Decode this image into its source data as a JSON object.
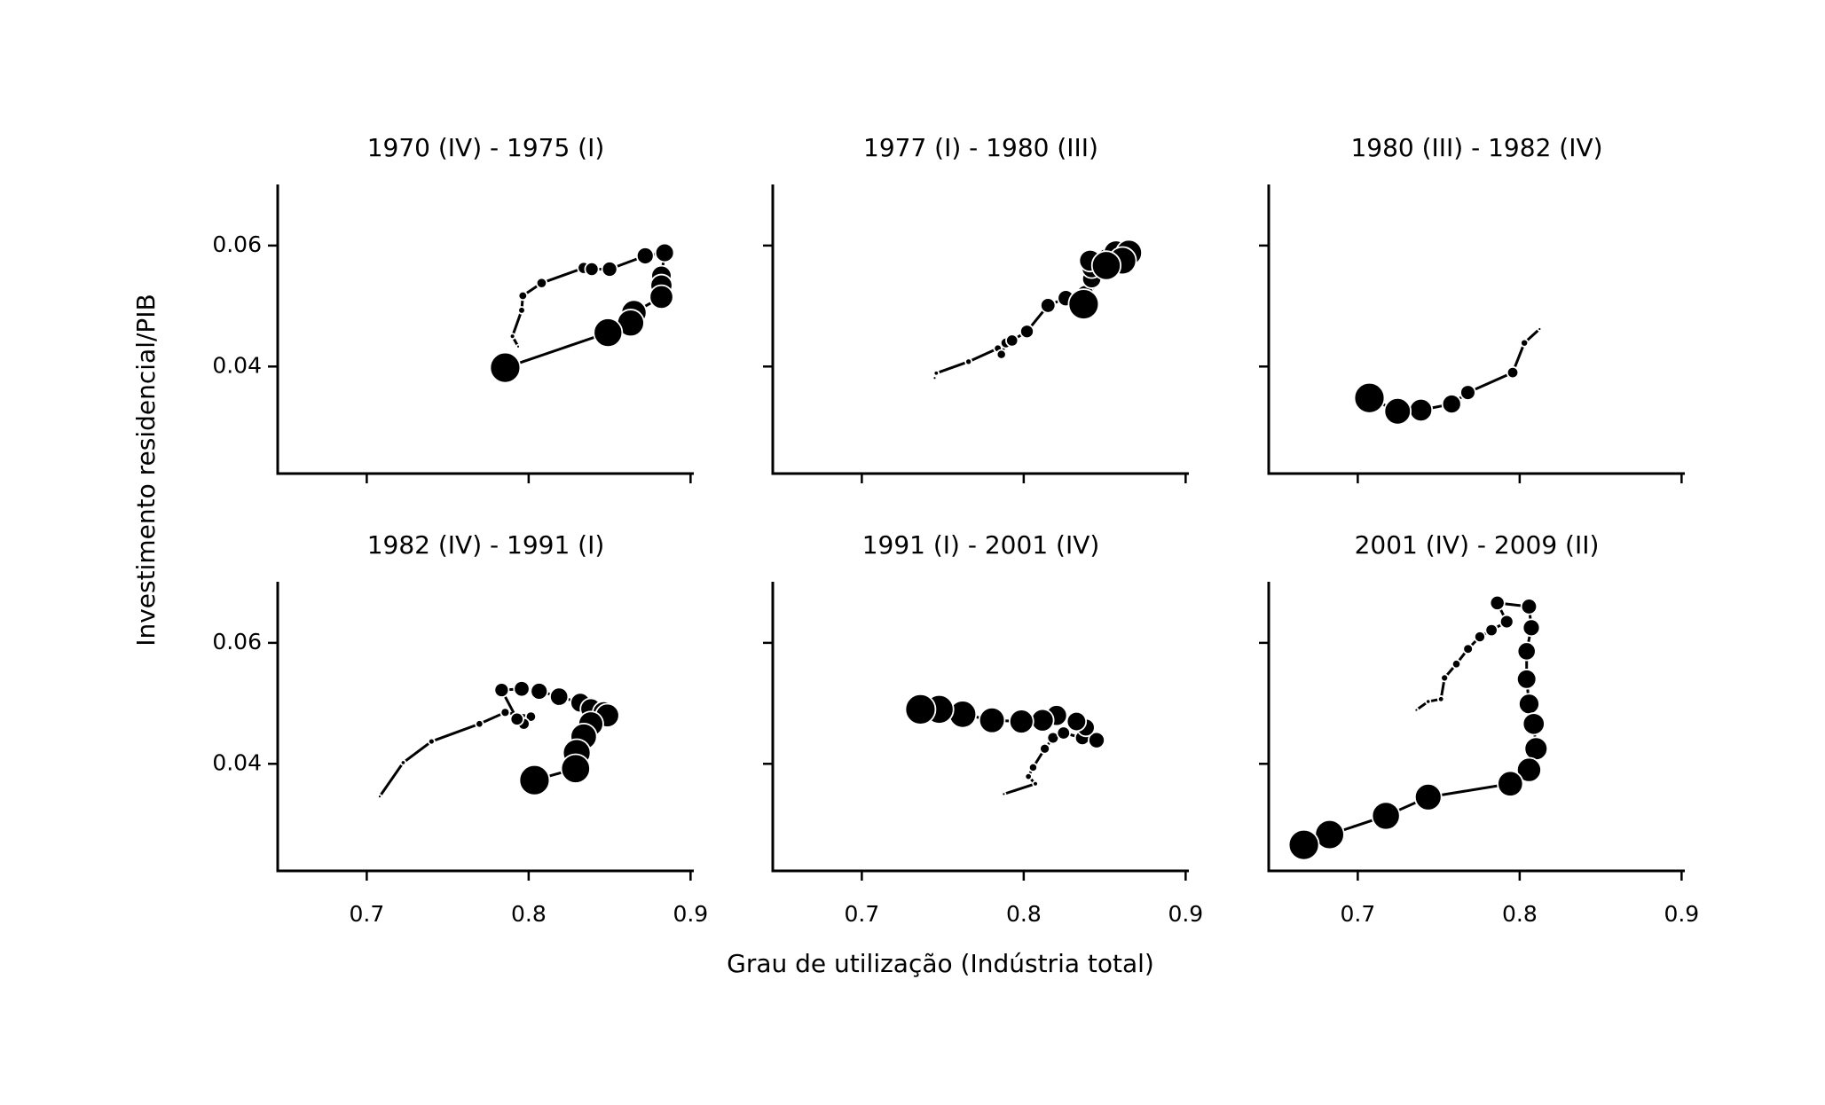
{
  "chart_data": [
    {
      "type": "scatter",
      "title": "1970 (IV) - 1975 (I)",
      "ylabel": "Investimento residencial/PIB",
      "color": "#000000",
      "x": [
        0.7935,
        0.79,
        0.7957,
        0.7964,
        0.808,
        0.834,
        0.839,
        0.85,
        0.872,
        0.884,
        0.882,
        0.882,
        0.882,
        0.865,
        0.863,
        0.849,
        0.7855
      ],
      "y": [
        0.0433,
        0.045,
        0.0493,
        0.0517,
        0.0538,
        0.0563,
        0.0561,
        0.0561,
        0.0583,
        0.0588,
        0.055,
        0.0534,
        0.0515,
        0.0489,
        0.0472,
        0.0456,
        0.0398
      ],
      "xlim": [
        0.645,
        0.902
      ],
      "ylim": [
        0.0223,
        0.0701
      ],
      "xticks": [
        0.7,
        0.8,
        0.9
      ],
      "yticks": [
        0.04,
        0.06
      ]
    },
    {
      "type": "scatter",
      "title": "1977 (I) - 1980 (III)",
      "color": "#000000",
      "x": [
        0.745,
        0.746,
        0.7659,
        0.784,
        0.7862,
        0.789,
        0.7928,
        0.802,
        0.815,
        0.826,
        0.838,
        0.842,
        0.842,
        0.841,
        0.852,
        0.857,
        0.865,
        0.861,
        0.851,
        0.837
      ],
      "y": [
        0.0381,
        0.0389,
        0.0408,
        0.043,
        0.042,
        0.0439,
        0.0443,
        0.0458,
        0.0501,
        0.0513,
        0.052,
        0.0545,
        0.0563,
        0.0575,
        0.0577,
        0.0588,
        0.0588,
        0.0575,
        0.0567,
        0.0503
      ],
      "xlim": [
        0.645,
        0.902
      ],
      "ylim": [
        0.0223,
        0.0701
      ],
      "xticks": [
        0.7,
        0.8,
        0.9
      ],
      "yticks": [
        0.04,
        0.06
      ]
    },
    {
      "type": "scatter",
      "title": "1980 (III) - 1982 (IV)",
      "color": "#000000",
      "x": [
        0.8123,
        0.8029,
        0.7957,
        0.768,
        0.758,
        0.739,
        0.7246,
        0.7072
      ],
      "y": [
        0.0462,
        0.0439,
        0.039,
        0.0357,
        0.0338,
        0.0328,
        0.0326,
        0.0348
      ],
      "xlim": [
        0.645,
        0.902
      ],
      "ylim": [
        0.0223,
        0.0701
      ],
      "xticks": [
        0.7,
        0.8,
        0.9
      ],
      "yticks": [
        0.04,
        0.06
      ]
    },
    {
      "type": "scatter",
      "title": "1982 (IV) - 1991 (I)",
      "color": "#000000",
      "x": [
        0.708,
        0.7225,
        0.74,
        0.7696,
        0.7855,
        0.8014,
        0.797,
        0.7928,
        0.7833,
        0.7957,
        0.8065,
        0.8188,
        0.8319,
        0.8384,
        0.8464,
        0.8486,
        0.8384,
        0.834,
        0.8297,
        0.829,
        0.8036
      ],
      "y": [
        0.0346,
        0.0402,
        0.0437,
        0.0466,
        0.0485,
        0.0478,
        0.0466,
        0.0474,
        0.0522,
        0.0524,
        0.052,
        0.0511,
        0.0501,
        0.0491,
        0.0485,
        0.048,
        0.0466,
        0.0445,
        0.0418,
        0.0392,
        0.0373
      ],
      "xlim": [
        0.645,
        0.902
      ],
      "ylim": [
        0.0223,
        0.0701
      ],
      "xticks": [
        0.7,
        0.8,
        0.9
      ],
      "yticks": [
        0.04,
        0.06
      ]
    },
    {
      "type": "scatter",
      "title": "1991 (I) - 2001 (IV)",
      "xlabel": "Grau de utilização (Indústria total)",
      "color": "#000000",
      "x": [
        0.7877,
        0.8072,
        0.8029,
        0.8058,
        0.813,
        0.8181,
        0.8246,
        0.8362,
        0.845,
        0.8384,
        0.8326,
        0.8203,
        0.8116,
        0.7986,
        0.7804,
        0.7623,
        0.7478,
        0.7362
      ],
      "y": [
        0.035,
        0.0367,
        0.0379,
        0.0394,
        0.0425,
        0.0443,
        0.0451,
        0.0443,
        0.0439,
        0.046,
        0.047,
        0.048,
        0.0472,
        0.047,
        0.0472,
        0.0482,
        0.049,
        0.049
      ],
      "xlim": [
        0.645,
        0.902
      ],
      "ylim": [
        0.0223,
        0.0701
      ],
      "xticks": [
        0.7,
        0.8,
        0.9
      ],
      "yticks": [
        0.04,
        0.06
      ]
    },
    {
      "type": "scatter",
      "title": "2001 (IV) - 2009 (II)",
      "color": "#000000",
      "x": [
        0.7362,
        0.7435,
        0.7514,
        0.7536,
        0.7609,
        0.7681,
        0.7754,
        0.7826,
        0.792,
        0.7862,
        0.8058,
        0.8072,
        0.8043,
        0.8043,
        0.8058,
        0.8087,
        0.8101,
        0.8058,
        0.7942,
        0.7435,
        0.7174,
        0.6826,
        0.6667
      ],
      "y": [
        0.0489,
        0.0503,
        0.0507,
        0.0542,
        0.0565,
        0.059,
        0.061,
        0.0621,
        0.0635,
        0.0666,
        0.066,
        0.0625,
        0.0586,
        0.054,
        0.0499,
        0.0466,
        0.0425,
        0.039,
        0.0367,
        0.0345,
        0.0314,
        0.0283,
        0.0266
      ],
      "xlim": [
        0.645,
        0.902
      ],
      "ylim": [
        0.0223,
        0.0701
      ],
      "xticks": [
        0.7,
        0.8,
        0.9
      ],
      "yticks": [
        0.04,
        0.06
      ]
    }
  ]
}
